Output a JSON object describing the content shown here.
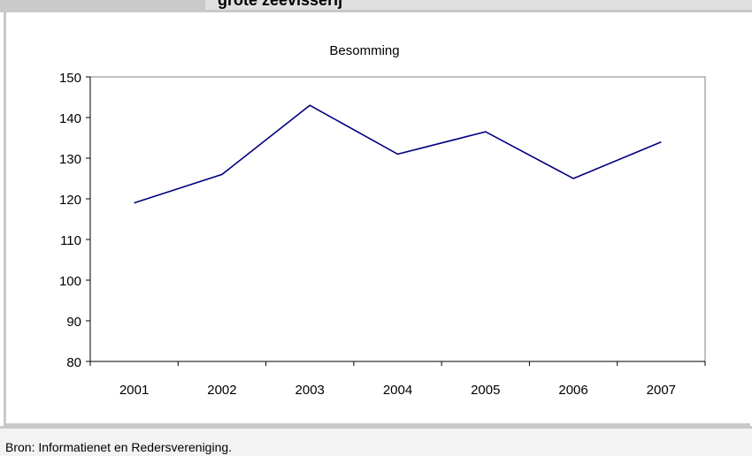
{
  "header": {
    "title_fragment": "grote zeevisserij"
  },
  "chart_data": {
    "type": "line",
    "title": "Besomming",
    "xlabel": "",
    "ylabel": "",
    "categories": [
      "2001",
      "2002",
      "2003",
      "2004",
      "2005",
      "2006",
      "2007"
    ],
    "series": [
      {
        "values": [
          119,
          126,
          143,
          131,
          136.5,
          125,
          134
        ],
        "color": "#000080"
      }
    ],
    "ylim": [
      80,
      150
    ],
    "yticks": [
      80,
      90,
      100,
      110,
      120,
      130,
      140,
      150
    ],
    "grid": false,
    "legend": "none"
  },
  "footer": {
    "source": "Bron: Informatienet en Redersvereniging."
  }
}
